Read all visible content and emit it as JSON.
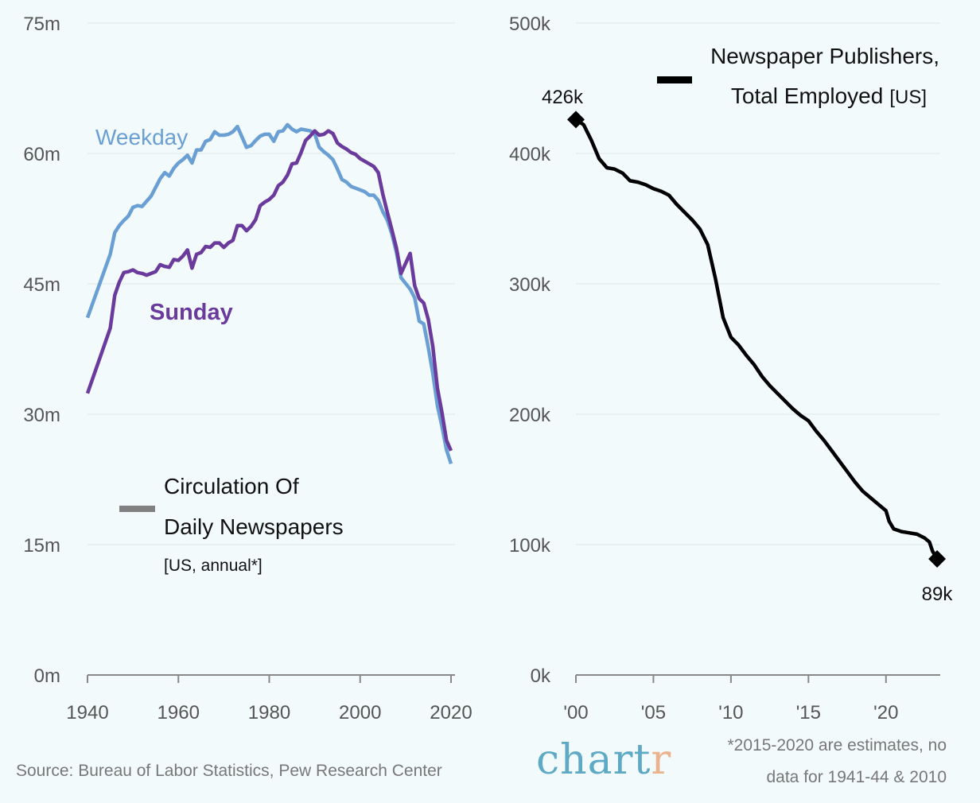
{
  "chart_data": [
    {
      "type": "line",
      "title": "Circulation Of Daily Newspapers",
      "subtitle": "[US, annual*]",
      "xlabel": "",
      "ylabel": "",
      "xlim": [
        1940,
        2020
      ],
      "ylim": [
        0,
        75
      ],
      "grid": true,
      "x_ticks": [
        1940,
        1960,
        1980,
        2000,
        2020
      ],
      "x_tick_labels": [
        "1940",
        "1960",
        "1980",
        "2000",
        "2020"
      ],
      "y_ticks": [
        0,
        15,
        30,
        45,
        60,
        75
      ],
      "y_tick_labels": [
        "0m",
        "15m",
        "30m",
        "45m",
        "60m",
        "75m"
      ],
      "legend_placement": "bottom-left",
      "legend_color": "#808080",
      "series": [
        {
          "name": "Weekday",
          "color": "#6a9fd4",
          "x": [
            1940,
            1945,
            1946,
            1947,
            1948,
            1949,
            1950,
            1951,
            1952,
            1953,
            1954,
            1955,
            1956,
            1957,
            1958,
            1959,
            1960,
            1961,
            1962,
            1963,
            1964,
            1965,
            1966,
            1967,
            1968,
            1969,
            1970,
            1971,
            1972,
            1973,
            1974,
            1975,
            1976,
            1977,
            1978,
            1979,
            1980,
            1981,
            1982,
            1983,
            1984,
            1985,
            1986,
            1987,
            1988,
            1989,
            1990,
            1991,
            1992,
            1993,
            1994,
            1995,
            1996,
            1997,
            1998,
            1999,
            2000,
            2001,
            2002,
            2003,
            2004,
            2005,
            2006,
            2007,
            2008,
            2009,
            2011,
            2012,
            2013,
            2014,
            2015,
            2016,
            2017,
            2018,
            2019,
            2020
          ],
          "values": [
            41.1,
            48.4,
            50.9,
            51.7,
            52.3,
            52.8,
            53.8,
            54.0,
            53.9,
            54.5,
            55.1,
            56.1,
            57.1,
            57.8,
            57.4,
            58.3,
            58.9,
            59.3,
            59.8,
            58.9,
            60.4,
            60.4,
            61.4,
            61.6,
            62.5,
            62.1,
            62.1,
            62.2,
            62.5,
            63.1,
            61.9,
            60.7,
            60.9,
            61.5,
            62.0,
            62.2,
            62.2,
            61.4,
            62.5,
            62.6,
            63.3,
            62.8,
            62.5,
            62.8,
            62.7,
            62.6,
            62.3,
            60.7,
            60.2,
            59.8,
            59.3,
            58.2,
            57.0,
            56.7,
            56.2,
            56.0,
            55.8,
            55.6,
            55.2,
            55.2,
            54.6,
            53.3,
            52.3,
            50.7,
            48.6,
            45.7,
            44.4,
            43.4,
            40.7,
            40.4,
            37.7,
            34.7,
            31.0,
            28.6,
            25.9,
            24.3
          ]
        },
        {
          "name": "Sunday",
          "color": "#6a3a9c",
          "x": [
            1940,
            1945,
            1946,
            1947,
            1948,
            1949,
            1950,
            1951,
            1952,
            1953,
            1954,
            1955,
            1956,
            1957,
            1958,
            1959,
            1960,
            1961,
            1962,
            1963,
            1964,
            1965,
            1966,
            1967,
            1968,
            1969,
            1970,
            1971,
            1972,
            1973,
            1974,
            1975,
            1976,
            1977,
            1978,
            1979,
            1980,
            1981,
            1982,
            1983,
            1984,
            1985,
            1986,
            1987,
            1988,
            1989,
            1990,
            1991,
            1992,
            1993,
            1994,
            1995,
            1996,
            1997,
            1998,
            1999,
            2000,
            2001,
            2002,
            2003,
            2004,
            2005,
            2006,
            2007,
            2008,
            2009,
            2011,
            2012,
            2013,
            2014,
            2015,
            2016,
            2017,
            2018,
            2019,
            2020
          ],
          "values": [
            32.4,
            39.9,
            43.7,
            45.2,
            46.3,
            46.4,
            46.6,
            46.3,
            46.2,
            46.0,
            46.2,
            46.4,
            47.2,
            47.0,
            46.9,
            47.8,
            47.7,
            48.2,
            48.9,
            46.8,
            48.4,
            48.6,
            49.3,
            49.2,
            49.7,
            49.7,
            49.2,
            49.7,
            50.0,
            51.7,
            51.7,
            51.1,
            51.6,
            52.4,
            54.0,
            54.4,
            54.7,
            55.2,
            56.3,
            56.7,
            57.5,
            58.8,
            58.9,
            60.1,
            61.5,
            62.0,
            62.6,
            62.1,
            62.2,
            62.6,
            62.3,
            61.2,
            60.8,
            60.5,
            60.1,
            59.9,
            59.4,
            59.1,
            58.8,
            58.5,
            57.8,
            55.3,
            53.2,
            51.2,
            49.1,
            46.2,
            48.5,
            44.8,
            43.3,
            42.8,
            40.9,
            37.8,
            33.0,
            30.2,
            27.0,
            25.8
          ]
        }
      ],
      "annotations": [
        "Weekday",
        "Sunday"
      ]
    },
    {
      "type": "line",
      "title": "Newspaper Publishers, Total Employed",
      "subtitle": "[US]",
      "xlabel": "",
      "ylabel": "",
      "xlim": [
        2000,
        2023.5
      ],
      "ylim": [
        0,
        500
      ],
      "grid": true,
      "x_ticks": [
        2000,
        2005,
        2010,
        2015,
        2020
      ],
      "x_tick_labels": [
        "'00",
        "'05",
        "'10",
        "'15",
        "'20"
      ],
      "y_ticks": [
        0,
        100,
        200,
        300,
        400,
        500
      ],
      "y_tick_labels": [
        "0k",
        "100k",
        "200k",
        "300k",
        "400k",
        "500k"
      ],
      "legend_placement": "top-right",
      "series": [
        {
          "name": "Newspaper Publishers, Total Employed",
          "color": "#000000",
          "unit": "thousands",
          "x": [
            2000,
            2000.5,
            2001,
            2001.5,
            2002,
            2002.5,
            2003,
            2003.5,
            2004,
            2004.5,
            2005,
            2005.5,
            2006,
            2006.5,
            2007,
            2007.5,
            2008,
            2008.5,
            2009,
            2009.5,
            2010,
            2010.5,
            2011,
            2011.5,
            2012,
            2012.5,
            2013,
            2013.5,
            2014,
            2014.5,
            2015,
            2015.5,
            2016,
            2016.5,
            2017,
            2017.5,
            2018,
            2018.5,
            2019,
            2019.5,
            2020,
            2020.2,
            2020.5,
            2021,
            2021.5,
            2022,
            2022.5,
            2022.8,
            2023,
            2023.3
          ],
          "values": [
            426,
            422,
            410,
            396,
            389,
            388,
            385,
            379,
            378,
            376,
            373,
            371,
            368,
            361,
            355,
            349,
            342,
            330,
            304,
            274,
            259,
            253,
            245,
            238,
            229,
            222,
            216,
            210,
            204,
            199,
            195,
            187,
            180,
            172,
            164,
            156,
            148,
            141,
            136,
            131,
            126,
            118,
            112,
            110,
            109,
            108,
            105,
            102,
            95,
            89
          ]
        }
      ],
      "annotations": [
        {
          "label": "426k",
          "x": 2000,
          "value": 426
        },
        {
          "label": "89k",
          "x": 2023.3,
          "value": 89
        }
      ]
    }
  ],
  "left_chart": {
    "legend_line1": "Circulation Of",
    "legend_line2": "Daily Newspapers",
    "legend_sub": "[US, annual*]",
    "label_weekday": "Weekday",
    "label_sunday": "Sunday"
  },
  "right_chart": {
    "legend_line1": "Newspaper Publishers,",
    "legend_line2": "Total Employed",
    "legend_sub": "[US]",
    "start_label": "426k",
    "end_label": "89k"
  },
  "footer": {
    "source": "Source: Bureau of Labor Statistics, Pew Research Center",
    "logo_main": "chart",
    "logo_accent": "r",
    "note_line1": "*2015-2020 are estimates, no",
    "note_line2": "data for 1941-44 & 2010"
  }
}
